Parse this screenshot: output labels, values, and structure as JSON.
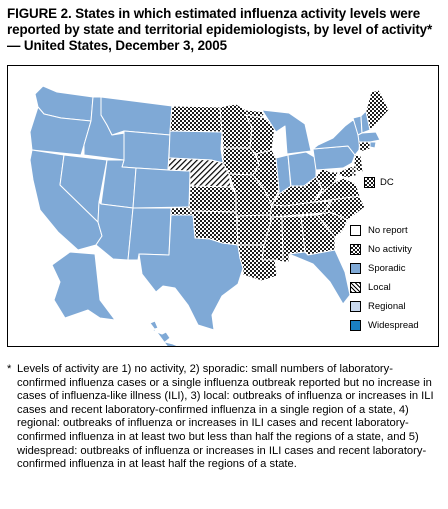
{
  "figure": {
    "title": "FIGURE 2. States in which estimated influenza activity levels were reported by state and territorial epidemiologists, by level of activity* — United States, December 3, 2005"
  },
  "map": {
    "dc_label": "DC",
    "activity_levels": {
      "no_activity": [
        "ND",
        "MN",
        "IA",
        "MO",
        "AR",
        "LA",
        "IL",
        "WI",
        "KY",
        "TN",
        "MS",
        "AL",
        "GA",
        "SC",
        "NC",
        "VA",
        "WV",
        "MD",
        "DE",
        "NJ",
        "KS",
        "OK",
        "ME",
        "CT",
        "DC"
      ],
      "sporadic": [
        "WA",
        "OR",
        "CA",
        "NV",
        "ID",
        "MT",
        "WY",
        "UT",
        "AZ",
        "CO",
        "NM",
        "SD",
        "TX",
        "MI",
        "IN",
        "OH",
        "PA",
        "NY",
        "VT",
        "NH",
        "MA",
        "RI",
        "FL",
        "AK",
        "HI"
      ],
      "local": [
        "NE"
      ],
      "regional": [],
      "widespread": [],
      "no_report": []
    }
  },
  "legend": {
    "items": [
      {
        "key": "no_report",
        "label": "No report",
        "color": "#ffffff"
      },
      {
        "key": "no_activity",
        "label": "No activity",
        "color": "#3a3a3a"
      },
      {
        "key": "sporadic",
        "label": "Sporadic",
        "color": "#7fa9d6"
      },
      {
        "key": "local",
        "label": "Local",
        "color": "#ffffff"
      },
      {
        "key": "regional",
        "label": "Regional",
        "color": "#c8d8ee"
      },
      {
        "key": "widespread",
        "label": "Widespread",
        "color": "#1a7fc1"
      }
    ]
  },
  "footnote": {
    "marker": "*",
    "text": "Levels of activity are 1) no activity, 2) sporadic: small numbers of laboratory-confirmed influenza cases or a single influenza outbreak reported but no increase in cases of influenza-like illness (ILI), 3) local: outbreaks of influenza or increases in ILI cases and recent laboratory-confirmed influenza in a single region of a state, 4) regional: outbreaks of influenza or increases in ILI cases and recent laboratory-confirmed influenza in at least two but less than half the regions of a state, and 5) widespread: outbreaks of influenza or increases in ILI cases and recent laboratory-confirmed influenza in at least half the regions of a state."
  }
}
